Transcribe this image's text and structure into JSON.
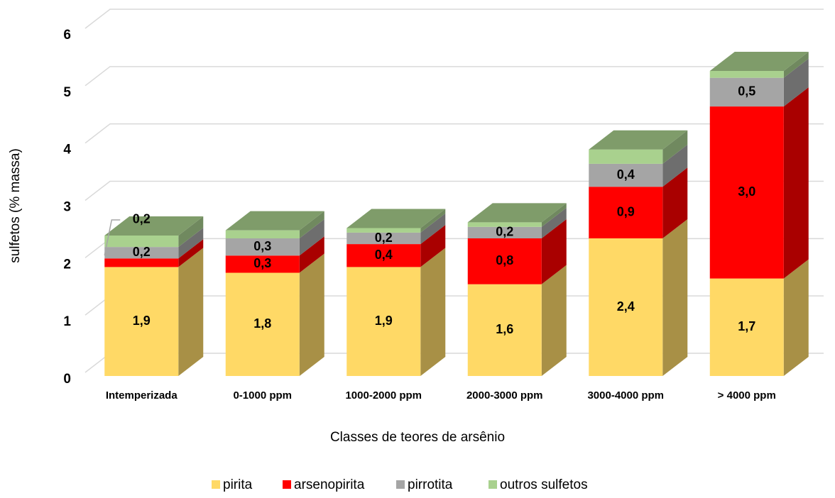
{
  "chart_data": {
    "type": "bar3d_stacked",
    "x_label": "Classes de teores de arsênio",
    "y_label": "sulfetos (% massa)",
    "categories": [
      "Intemperizada",
      "0-1000 ppm",
      "1000-2000 ppm",
      "2000-3000 ppm",
      "3000-4000 ppm",
      "> 4000 ppm"
    ],
    "series": [
      {
        "name": "pirita",
        "color": "#FFD966",
        "side_color": "#A89046",
        "values": [
          1.9,
          1.8,
          1.9,
          1.6,
          2.4,
          1.7
        ],
        "value_labels": [
          "1,9",
          "1,8",
          "1,9",
          "1,6",
          "2,4",
          "1,7"
        ]
      },
      {
        "name": "arsenopirita",
        "color": "#FF0000",
        "side_color": "#A90000",
        "values": [
          0.15,
          0.3,
          0.4,
          0.8,
          0.9,
          3.0
        ],
        "value_labels": [
          null,
          "0,3",
          "0,4",
          "0,8",
          "0,9",
          "3,0"
        ]
      },
      {
        "name": "pirrotita",
        "color": "#A5A5A5",
        "side_color": "#6E6E6E",
        "values": [
          0.2,
          0.3,
          0.2,
          0.2,
          0.4,
          0.5
        ],
        "value_labels": [
          "0,2",
          "0,3",
          "0,2",
          "0,2",
          "0,4",
          "0,5"
        ]
      },
      {
        "name": "outros sulfetos",
        "color": "#A9D18E",
        "side_color": "#70895F",
        "top_color": "#7F9C6A",
        "values": [
          0.2,
          0.14,
          0.08,
          0.08,
          0.25,
          0.12
        ],
        "value_labels": [
          "0,2",
          null,
          null,
          null,
          null,
          null
        ]
      }
    ],
    "ylim": [
      0,
      6
    ],
    "yticks": [
      0,
      1,
      2,
      3,
      4,
      5,
      6
    ],
    "grid": true
  }
}
